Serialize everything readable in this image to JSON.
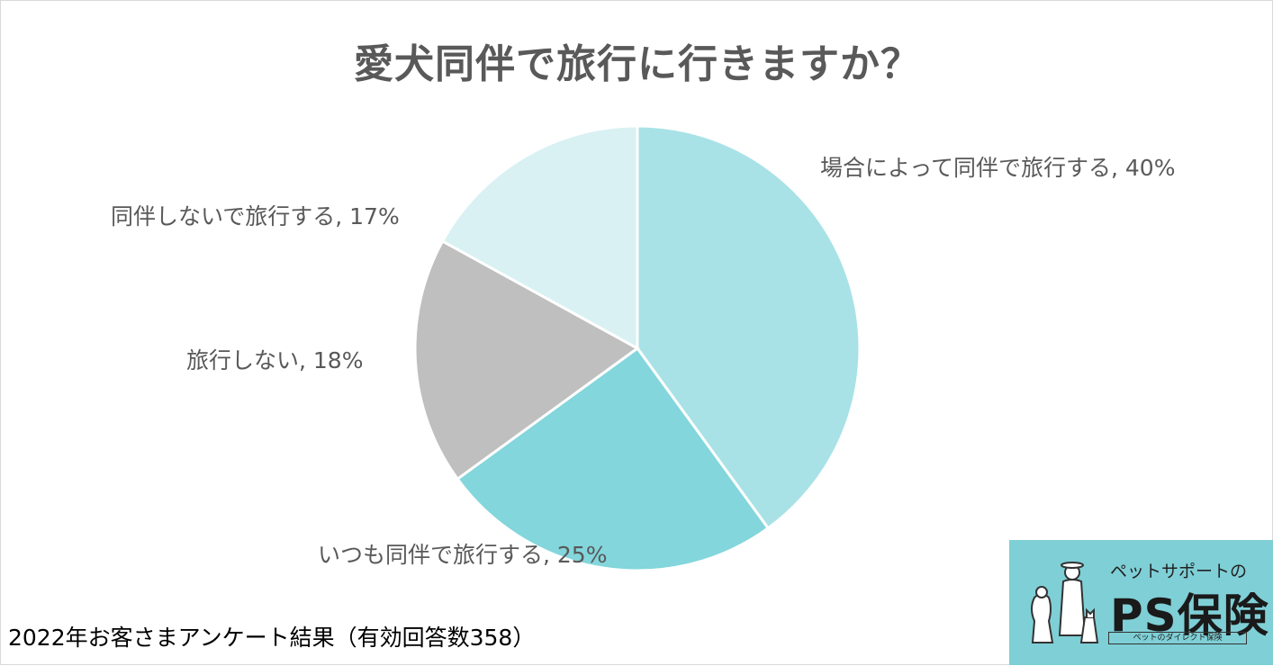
{
  "chart_data": {
    "type": "pie",
    "title": "愛犬同伴で旅行に行きますか？",
    "start_angle_deg": 0,
    "direction": "clockwise",
    "slices": [
      {
        "label": "場合によって同伴で旅行する",
        "value": 40,
        "display": "場合によって同伴で旅行する, 40%",
        "color": "#a8e2e6"
      },
      {
        "label": "いつも同伴で旅行する",
        "value": 25,
        "display": "いつも同伴で旅行する, 25%",
        "color": "#82d6dc"
      },
      {
        "label": "旅行しない",
        "value": 18,
        "display": "旅行しない, 18%",
        "color": "#bfbfbf"
      },
      {
        "label": "同伴しないで旅行する",
        "value": 17,
        "display": "同伴しないで旅行する, 17%",
        "color": "#d9f1f3"
      }
    ]
  },
  "footnote": "2022年お客さまアンケート結果（有効回答数358）",
  "logo": {
    "tagline": "ペットサポートの",
    "brand": "PS保険",
    "subline": "ペットのダイレクト保険"
  }
}
